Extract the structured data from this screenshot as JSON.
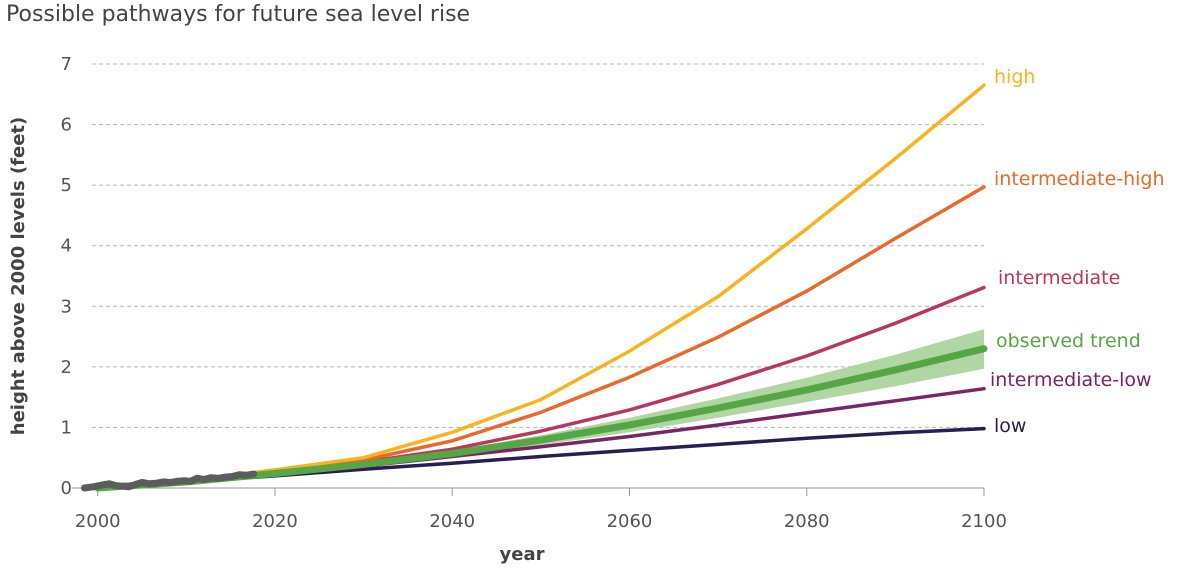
{
  "chart_data": {
    "type": "line",
    "title": "Possible pathways for future sea level rise",
    "xlabel": "year",
    "ylabel": "height above 2000 levels (feet)",
    "xlim": [
      1998,
      2100
    ],
    "ylim": [
      0,
      7
    ],
    "xticks": [
      2000,
      2020,
      2040,
      2060,
      2080,
      2100
    ],
    "yticks": [
      0,
      1,
      2,
      3,
      4,
      5,
      6,
      7
    ],
    "grid": "horizontal dashed",
    "series": [
      {
        "name": "high",
        "color": "#f7b41f",
        "points": [
          [
            2000,
            0.0
          ],
          [
            2010,
            0.12
          ],
          [
            2020,
            0.3
          ],
          [
            2030,
            0.5
          ],
          [
            2040,
            0.92
          ],
          [
            2050,
            1.46
          ],
          [
            2060,
            2.26
          ],
          [
            2070,
            3.16
          ],
          [
            2080,
            4.28
          ],
          [
            2090,
            5.44
          ],
          [
            2100,
            6.65
          ]
        ]
      },
      {
        "name": "intermediate-high",
        "color": "#e8692b",
        "points": [
          [
            2000,
            0.0
          ],
          [
            2010,
            0.12
          ],
          [
            2020,
            0.28
          ],
          [
            2030,
            0.46
          ],
          [
            2040,
            0.78
          ],
          [
            2050,
            1.25
          ],
          [
            2060,
            1.83
          ],
          [
            2070,
            2.49
          ],
          [
            2080,
            3.25
          ],
          [
            2090,
            4.12
          ],
          [
            2100,
            4.97
          ]
        ]
      },
      {
        "name": "intermediate",
        "color": "#b9375e",
        "points": [
          [
            2000,
            0.0
          ],
          [
            2010,
            0.11
          ],
          [
            2020,
            0.26
          ],
          [
            2030,
            0.43
          ],
          [
            2040,
            0.64
          ],
          [
            2050,
            0.94
          ],
          [
            2060,
            1.29
          ],
          [
            2070,
            1.71
          ],
          [
            2080,
            2.18
          ],
          [
            2090,
            2.72
          ],
          [
            2100,
            3.31
          ]
        ]
      },
      {
        "name": "observed trend",
        "color": "#55a645",
        "band_color": "#a7d19a",
        "points": [
          [
            2000,
            0.0
          ],
          [
            2010,
            0.1
          ],
          [
            2020,
            0.24
          ],
          [
            2030,
            0.39
          ],
          [
            2040,
            0.57
          ],
          [
            2050,
            0.79
          ],
          [
            2060,
            1.04
          ],
          [
            2070,
            1.32
          ],
          [
            2080,
            1.62
          ],
          [
            2090,
            1.95
          ],
          [
            2100,
            2.3
          ]
        ],
        "band": [
          [
            2018,
            0.22,
            0.24
          ],
          [
            2030,
            0.37,
            0.42
          ],
          [
            2040,
            0.52,
            0.62
          ],
          [
            2050,
            0.71,
            0.87
          ],
          [
            2060,
            0.92,
            1.16
          ],
          [
            2070,
            1.16,
            1.48
          ],
          [
            2080,
            1.42,
            1.82
          ],
          [
            2090,
            1.68,
            2.2
          ],
          [
            2100,
            1.97,
            2.62
          ]
        ]
      },
      {
        "name": "intermediate-low",
        "color": "#7a2365",
        "points": [
          [
            2000,
            0.0
          ],
          [
            2010,
            0.1
          ],
          [
            2020,
            0.22
          ],
          [
            2030,
            0.36
          ],
          [
            2040,
            0.52
          ],
          [
            2050,
            0.68
          ],
          [
            2060,
            0.85
          ],
          [
            2070,
            1.04
          ],
          [
            2080,
            1.24
          ],
          [
            2090,
            1.44
          ],
          [
            2100,
            1.64
          ]
        ]
      },
      {
        "name": "low",
        "color": "#2b1c54",
        "points": [
          [
            2000,
            0.0
          ],
          [
            2010,
            0.1
          ],
          [
            2020,
            0.2
          ],
          [
            2030,
            0.31
          ],
          [
            2040,
            0.41
          ],
          [
            2050,
            0.52
          ],
          [
            2060,
            0.62
          ],
          [
            2070,
            0.72
          ],
          [
            2080,
            0.82
          ],
          [
            2090,
            0.91
          ],
          [
            2100,
            0.98
          ]
        ]
      }
    ],
    "observed": {
      "color": "#5c5c5c",
      "points": [
        [
          1998.5,
          0.0
        ],
        [
          1999.5,
          0.02
        ],
        [
          2000.5,
          0.05
        ],
        [
          2001.3,
          0.07
        ],
        [
          2002,
          0.04
        ],
        [
          2002.8,
          0.03
        ],
        [
          2003.5,
          0.02
        ],
        [
          2004.3,
          0.06
        ],
        [
          2005,
          0.09
        ],
        [
          2005.8,
          0.07
        ],
        [
          2006.6,
          0.08
        ],
        [
          2007.4,
          0.1
        ],
        [
          2008.2,
          0.09
        ],
        [
          2009,
          0.11
        ],
        [
          2009.8,
          0.12
        ],
        [
          2010.5,
          0.11
        ],
        [
          2011.2,
          0.16
        ],
        [
          2012,
          0.14
        ],
        [
          2012.8,
          0.17
        ],
        [
          2013.6,
          0.16
        ],
        [
          2014.4,
          0.18
        ],
        [
          2015.2,
          0.19
        ],
        [
          2016,
          0.22
        ],
        [
          2016.8,
          0.21
        ],
        [
          2017.6,
          0.23
        ]
      ]
    }
  }
}
